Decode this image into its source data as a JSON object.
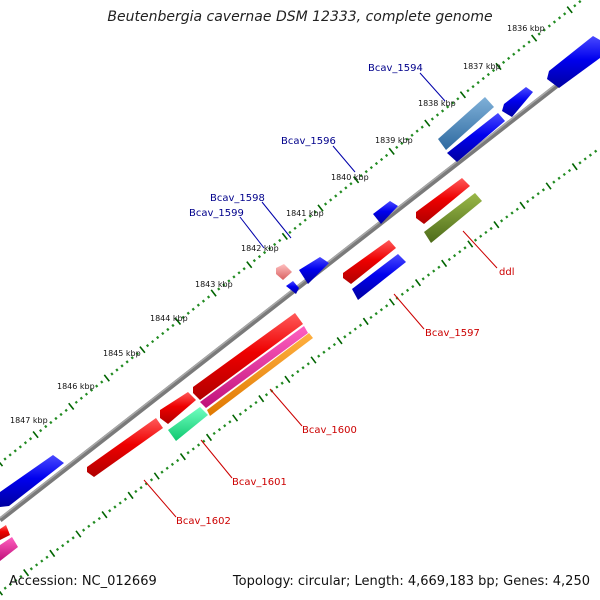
{
  "title": "Beutenbergia cavernae DSM 12333, complete genome",
  "footer": {
    "accession": "Accession: NC_012669",
    "summary": "Topology: circular; Length: 4,669,183 bp; Genes: 4,250"
  },
  "colors": {
    "backbone": "#808080",
    "tick_dots": "#228B22",
    "tick_major": "#006400",
    "forward_label": "#00008B",
    "reverse_label": "#CC0000"
  },
  "scale_labels": [
    "1836 kbp",
    "1837 kbp",
    "1838 kbp",
    "1839 kbp",
    "1840 kbp",
    "1841 kbp",
    "1842 kbp",
    "1843 kbp",
    "1844 kbp",
    "1845 kbp",
    "1846 kbp",
    "1847 kbp"
  ],
  "gene_labels_forward": [
    "Bcav_1594",
    "Bcav_1596",
    "Bcav_1598",
    "Bcav_1599"
  ],
  "gene_labels_reverse": [
    "ddl",
    "Bcav_1597",
    "Bcav_1600",
    "Bcav_1601",
    "Bcav_1602"
  ]
}
